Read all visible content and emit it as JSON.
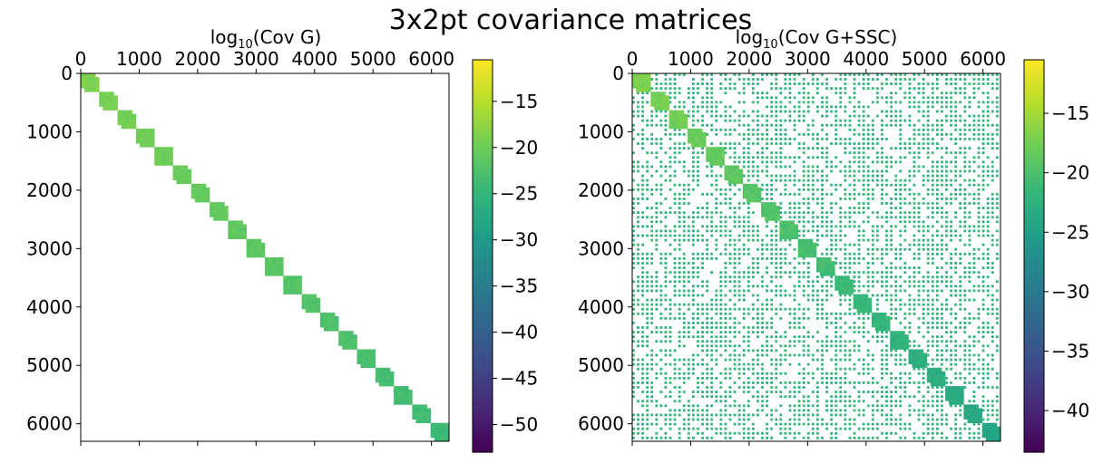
{
  "figure": {
    "title": "3x2pt covariance matrices"
  },
  "chart_data": [
    {
      "type": "heatmap",
      "title_prefix": "log",
      "title_sub": "10",
      "title_suffix": "(Cov G)",
      "x_ticks": [
        "0",
        "1000",
        "2000",
        "3000",
        "4000",
        "5000",
        "6000"
      ],
      "y_ticks": [
        "0",
        "1000",
        "2000",
        "3000",
        "4000",
        "5000",
        "6000"
      ],
      "xlim": [
        0,
        6300
      ],
      "ylim": [
        6300,
        0
      ],
      "matrix_size": 6300,
      "n_blocks": 20,
      "structure": "block-diagonal",
      "diag_value_start": -19,
      "diag_value_end": -24,
      "colorbar": {
        "range": [
          -53,
          -10.5
        ],
        "ticks": [
          "−15",
          "−20",
          "−25",
          "−30",
          "−35",
          "−40",
          "−45",
          "−50"
        ],
        "tick_values": [
          -15,
          -20,
          -25,
          -30,
          -35,
          -40,
          -45,
          -50
        ],
        "colormap": "viridis"
      }
    },
    {
      "type": "heatmap",
      "title_prefix": "log",
      "title_sub": "10",
      "title_suffix": "(Cov G+SSC)",
      "x_ticks": [
        "0",
        "1000",
        "2000",
        "3000",
        "4000",
        "5000",
        "6000"
      ],
      "y_ticks": [
        "0",
        "1000",
        "2000",
        "3000",
        "4000",
        "5000",
        "6000"
      ],
      "xlim": [
        0,
        6300
      ],
      "ylim": [
        6300,
        0
      ],
      "matrix_size": 6300,
      "n_blocks": 20,
      "structure": "block-diagonal plus dense off-diagonal grid",
      "diag_value_start": -17,
      "diag_value_end": -24,
      "offdiag_value": -22,
      "colorbar": {
        "range": [
          -43.5,
          -10.5
        ],
        "ticks": [
          "−15",
          "−20",
          "−25",
          "−30",
          "−35",
          "−40"
        ],
        "tick_values": [
          -15,
          -20,
          -25,
          -30,
          -35,
          -40
        ],
        "colormap": "viridis"
      }
    }
  ]
}
